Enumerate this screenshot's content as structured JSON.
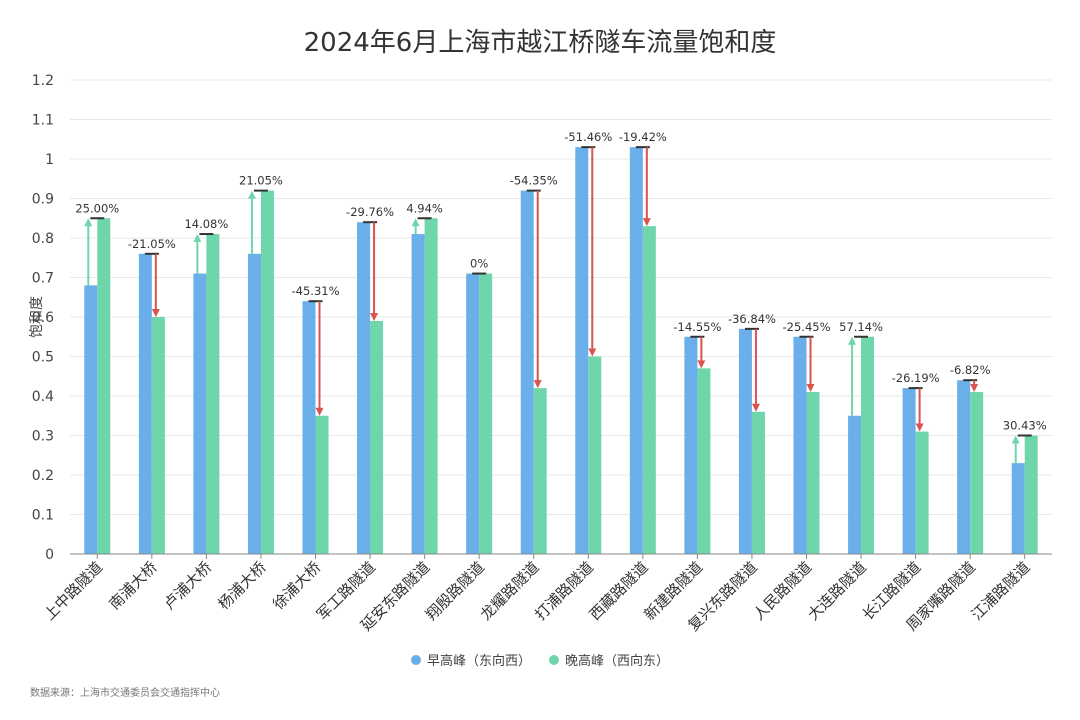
{
  "chart_data": {
    "type": "bar",
    "title": "2024年6月上海市越江桥隧车流量饱和度",
    "ylabel": "饱和度",
    "xlabel": "",
    "ylim": [
      0,
      1.2
    ],
    "yticks": [
      "0",
      "0.1",
      "0.2",
      "0.3",
      "0.4",
      "0.5",
      "0.6",
      "0.7",
      "0.8",
      "0.9",
      "1",
      "1.1",
      "1.2"
    ],
    "grid": true,
    "legend_position": "bottom",
    "categories": [
      "上中路隧道",
      "南浦大桥",
      "卢浦大桥",
      "杨浦大桥",
      "徐浦大桥",
      "军工路隧道",
      "延安东路隧道",
      "翔殷路隧道",
      "龙耀路隧道",
      "打浦路隧道",
      "西藏路隧道",
      "新建路隧道",
      "复兴东路隧道",
      "人民路隧道",
      "大连路隧道",
      "长江路隧道",
      "周家嘴路隧道",
      "江浦路隧道"
    ],
    "series": [
      {
        "name": "早高峰（东向西）",
        "color": "#6aaeea",
        "values": [
          0.68,
          0.76,
          0.71,
          0.76,
          0.64,
          0.84,
          0.81,
          0.71,
          0.92,
          1.03,
          1.03,
          0.55,
          0.57,
          0.55,
          0.35,
          0.42,
          0.44,
          0.23
        ]
      },
      {
        "name": "晚高峰（西向东）",
        "color": "#6fd6ac",
        "values": [
          0.85,
          0.6,
          0.81,
          0.92,
          0.35,
          0.59,
          0.85,
          0.71,
          0.42,
          0.5,
          0.83,
          0.47,
          0.36,
          0.41,
          0.55,
          0.31,
          0.41,
          0.3
        ]
      }
    ],
    "change_labels": [
      "25.00%",
      "-21.05%",
      "14.08%",
      "21.05%",
      "-45.31%",
      "-29.76%",
      "4.94%",
      "0%",
      "-54.35%",
      "-51.46%",
      "-19.42%",
      "-14.55%",
      "-36.84%",
      "-25.45%",
      "57.14%",
      "-26.19%",
      "-6.82%",
      "30.43%"
    ],
    "arrow_colors": {
      "up": "#6fd6ac",
      "down": "#d9534f"
    }
  },
  "source_note": "数据来源：上海市交通委员会交通指挥中心"
}
